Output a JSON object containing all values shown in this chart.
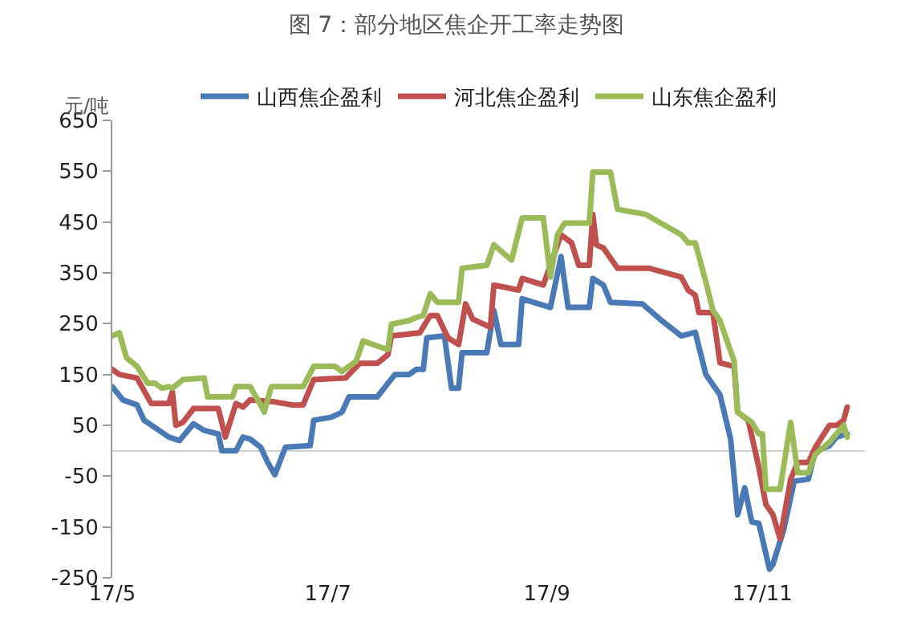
{
  "chart_data": {
    "type": "line",
    "title": "图 7：部分地区焦企开工率走势图",
    "ylabel": "元/吨",
    "xlim": [
      "--05-01",
      "--11-30"
    ],
    "xticks": [
      {
        "value": "--05-01",
        "label": "17/5"
      },
      {
        "value": "--07-01",
        "label": "17/7"
      },
      {
        "value": "--09-01",
        "label": "17/9"
      },
      {
        "value": "--11-01",
        "label": "17/11"
      }
    ],
    "ylim": [
      -250,
      650
    ],
    "yticks": [
      -250,
      -150,
      -50,
      50,
      150,
      250,
      350,
      450,
      550,
      650
    ],
    "legend": "top",
    "marker": "none",
    "line_style": "solid",
    "series": [
      {
        "name": "山西焦企盈利",
        "color": "#4a7ab5",
        "x": [
          "--05-01",
          "--05-04",
          "--05-08",
          "--05-10",
          "--05-17",
          "--05-20",
          "--05-24",
          "--05-27",
          "--05-31",
          "--06-01",
          "--06-05",
          "--06-07",
          "--06-09",
          "--06-12",
          "--06-14",
          "--06-16",
          "--06-19",
          "--06-26",
          "--06-27",
          "--07-02",
          "--07-05",
          "--07-07",
          "--07-15",
          "--07-20",
          "--07-24",
          "--07-26",
          "--07-28",
          "--07-29",
          "--08-03",
          "--08-05",
          "--08-07",
          "--08-08",
          "--08-15",
          "--08-17",
          "--08-19",
          "--08-24",
          "--08-25",
          "--09-02",
          "--09-05",
          "--09-07",
          "--09-13",
          "--09-14",
          "--09-17",
          "--09-19",
          "--09-28",
          "--10-03",
          "--10-09",
          "--10-13",
          "--10-16",
          "--10-20",
          "--10-23",
          "--10-25",
          "--10-27",
          "--10-29",
          "--10-31",
          "--11-03",
          "--11-04",
          "--11-07",
          "--11-10",
          "--11-14",
          "--11-16",
          "--11-20",
          "--11-22",
          "--11-25"
        ],
        "values": [
          126,
          100,
          90,
          60,
          27,
          20,
          53,
          40,
          33,
          0,
          0,
          27,
          23,
          7,
          -23,
          -47,
          7,
          10,
          60,
          66,
          76,
          106,
          106,
          150,
          150,
          160,
          160,
          222,
          226,
          123,
          123,
          193,
          193,
          276,
          209,
          209,
          299,
          282,
          382,
          282,
          282,
          339,
          326,
          292,
          289,
          259,
          226,
          233,
          150,
          110,
          23,
          -126,
          -73,
          -140,
          -143,
          -233,
          -223,
          -156,
          -60,
          -56,
          0,
          10,
          27,
          33
        ]
      },
      {
        "name": "河北焦企盈利",
        "color": "#c0504d",
        "x": [
          "--05-01",
          "--05-03",
          "--05-08",
          "--05-12",
          "--05-17",
          "--05-18",
          "--05-19",
          "--05-21",
          "--05-24",
          "--05-31",
          "--06-02",
          "--06-05",
          "--06-07",
          "--06-09",
          "--06-16",
          "--06-21",
          "--06-24",
          "--06-27",
          "--07-06",
          "--07-10",
          "--07-15",
          "--07-18",
          "--07-19",
          "--07-27",
          "--07-30",
          "--08-01",
          "--08-04",
          "--08-07",
          "--08-09",
          "--08-11",
          "--08-16",
          "--08-17",
          "--08-24",
          "--08-25",
          "--08-31",
          "--09-05",
          "--09-08",
          "--09-10",
          "--09-13",
          "--09-14",
          "--09-15",
          "--09-17",
          "--09-21",
          "--09-30",
          "--10-09",
          "--10-11",
          "--10-13",
          "--10-14",
          "--10-18",
          "--10-20",
          "--10-24",
          "--10-25",
          "--10-28",
          "--10-31",
          "--11-02",
          "--11-04",
          "--11-06",
          "--11-09",
          "--11-11",
          "--11-14",
          "--11-16",
          "--11-20",
          "--11-22",
          "--11-24",
          "--11-25"
        ],
        "values": [
          160,
          150,
          143,
          93,
          93,
          116,
          50,
          56,
          83,
          83,
          27,
          93,
          86,
          100,
          96,
          90,
          90,
          140,
          143,
          172,
          172,
          189,
          226,
          232,
          266,
          266,
          222,
          209,
          289,
          259,
          243,
          326,
          316,
          339,
          326,
          425,
          409,
          365,
          365,
          465,
          405,
          399,
          359,
          359,
          342,
          316,
          306,
          272,
          272,
          173,
          166,
          76,
          60,
          -33,
          -106,
          -126,
          -173,
          -56,
          -23,
          -23,
          7,
          50,
          50,
          60,
          86
        ]
      },
      {
        "name": "山东焦企盈利",
        "color": "#9bbb59",
        "x": [
          "--05-01",
          "--05-03",
          "--05-05",
          "--05-08",
          "--05-11",
          "--05-13",
          "--05-15",
          "--05-17",
          "--05-18",
          "--05-21",
          "--05-27",
          "--05-28",
          "--06-04",
          "--06-05",
          "--06-09",
          "--06-12",
          "--06-13",
          "--06-15",
          "--06-24",
          "--06-27",
          "--07-03",
          "--07-05",
          "--07-09",
          "--07-11",
          "--07-15",
          "--07-18",
          "--07-19",
          "--07-24",
          "--07-26",
          "--07-28",
          "--07-30",
          "--08-01",
          "--08-07",
          "--08-08",
          "--08-15",
          "--08-17",
          "--08-22",
          "--08-25",
          "--08-31",
          "--09-02",
          "--09-04",
          "--09-06",
          "--09-13",
          "--09-14",
          "--09-19",
          "--09-21",
          "--09-29",
          "--10-09",
          "--10-11",
          "--10-13",
          "--10-16",
          "--10-18",
          "--10-20",
          "--10-24",
          "--10-25",
          "--10-29",
          "--10-31",
          "--11-01",
          "--11-02",
          "--11-06",
          "--11-09",
          "--11-11",
          "--11-14",
          "--11-16",
          "--11-20",
          "--11-24",
          "--11-25"
        ],
        "values": [
          226,
          232,
          183,
          166,
          133,
          133,
          123,
          126,
          123,
          140,
          143,
          106,
          106,
          126,
          126,
          90,
          76,
          126,
          126,
          166,
          166,
          156,
          176,
          216,
          206,
          199,
          249,
          256,
          262,
          266,
          309,
          292,
          292,
          359,
          365,
          405,
          375,
          458,
          458,
          342,
          425,
          448,
          448,
          548,
          548,
          475,
          465,
          425,
          409,
          409,
          332,
          276,
          256,
          176,
          76,
          56,
          33,
          33,
          -76,
          -76,
          56,
          -43,
          -43,
          -7,
          17,
          50,
          27
        ]
      }
    ]
  }
}
